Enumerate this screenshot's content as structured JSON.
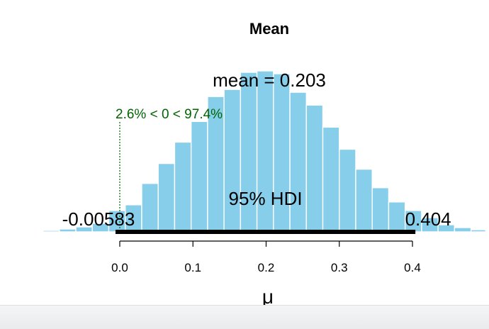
{
  "chart_data": {
    "type": "histogram",
    "title": "Mean",
    "xlabel": "μ",
    "ylabel": "",
    "xlim": [
      -0.16,
      0.5
    ],
    "ylim": [
      0,
      230
    ],
    "bar_color": "#87ceeb",
    "bar_edge_color": "#ffffff",
    "bin_width": 0.0225,
    "bins": [
      {
        "x0": -0.1275,
        "x1": -0.105,
        "count": 1
      },
      {
        "x0": -0.105,
        "x1": -0.0825,
        "count": 2
      },
      {
        "x0": -0.0825,
        "x1": -0.06,
        "count": 4
      },
      {
        "x0": -0.06,
        "x1": -0.0375,
        "count": 7
      },
      {
        "x0": -0.0375,
        "x1": -0.015,
        "count": 12
      },
      {
        "x0": -0.015,
        "x1": 0.0075,
        "count": 30
      },
      {
        "x0": 0.0075,
        "x1": 0.03,
        "count": 38
      },
      {
        "x0": 0.03,
        "x1": 0.0525,
        "count": 68
      },
      {
        "x0": 0.0525,
        "x1": 0.075,
        "count": 96
      },
      {
        "x0": 0.075,
        "x1": 0.0975,
        "count": 126
      },
      {
        "x0": 0.0975,
        "x1": 0.12,
        "count": 155
      },
      {
        "x0": 0.12,
        "x1": 0.1425,
        "count": 190
      },
      {
        "x0": 0.1425,
        "x1": 0.165,
        "count": 200
      },
      {
        "x0": 0.165,
        "x1": 0.1875,
        "count": 224
      },
      {
        "x0": 0.1875,
        "x1": 0.21,
        "count": 226
      },
      {
        "x0": 0.21,
        "x1": 0.2325,
        "count": 222
      },
      {
        "x0": 0.2325,
        "x1": 0.255,
        "count": 196
      },
      {
        "x0": 0.255,
        "x1": 0.2775,
        "count": 178
      },
      {
        "x0": 0.2775,
        "x1": 0.3,
        "count": 147
      },
      {
        "x0": 0.3,
        "x1": 0.3225,
        "count": 116
      },
      {
        "x0": 0.3225,
        "x1": 0.345,
        "count": 88
      },
      {
        "x0": 0.345,
        "x1": 0.3675,
        "count": 62
      },
      {
        "x0": 0.3675,
        "x1": 0.39,
        "count": 42
      },
      {
        "x0": 0.39,
        "x1": 0.4125,
        "count": 30
      },
      {
        "x0": 0.4125,
        "x1": 0.435,
        "count": 20
      },
      {
        "x0": 0.435,
        "x1": 0.4575,
        "count": 10
      },
      {
        "x0": 0.4575,
        "x1": 0.48,
        "count": 6
      },
      {
        "x0": 0.48,
        "x1": 0.5,
        "count": 3
      }
    ],
    "x_ticks": [
      0.0,
      0.1,
      0.2,
      0.3,
      0.4
    ],
    "x_tick_labels": [
      "0.0",
      "0.1",
      "0.2",
      "0.3",
      "0.4"
    ],
    "mean_label": "mean = 0.203",
    "comparison": {
      "value": 0,
      "label": "2.6% < 0 < 97.4%",
      "color": "#006400"
    },
    "hdi": {
      "label": "95% HDI",
      "low": -0.00583,
      "high": 0.404,
      "low_label": "-0.00583",
      "high_label": "0.404"
    }
  }
}
